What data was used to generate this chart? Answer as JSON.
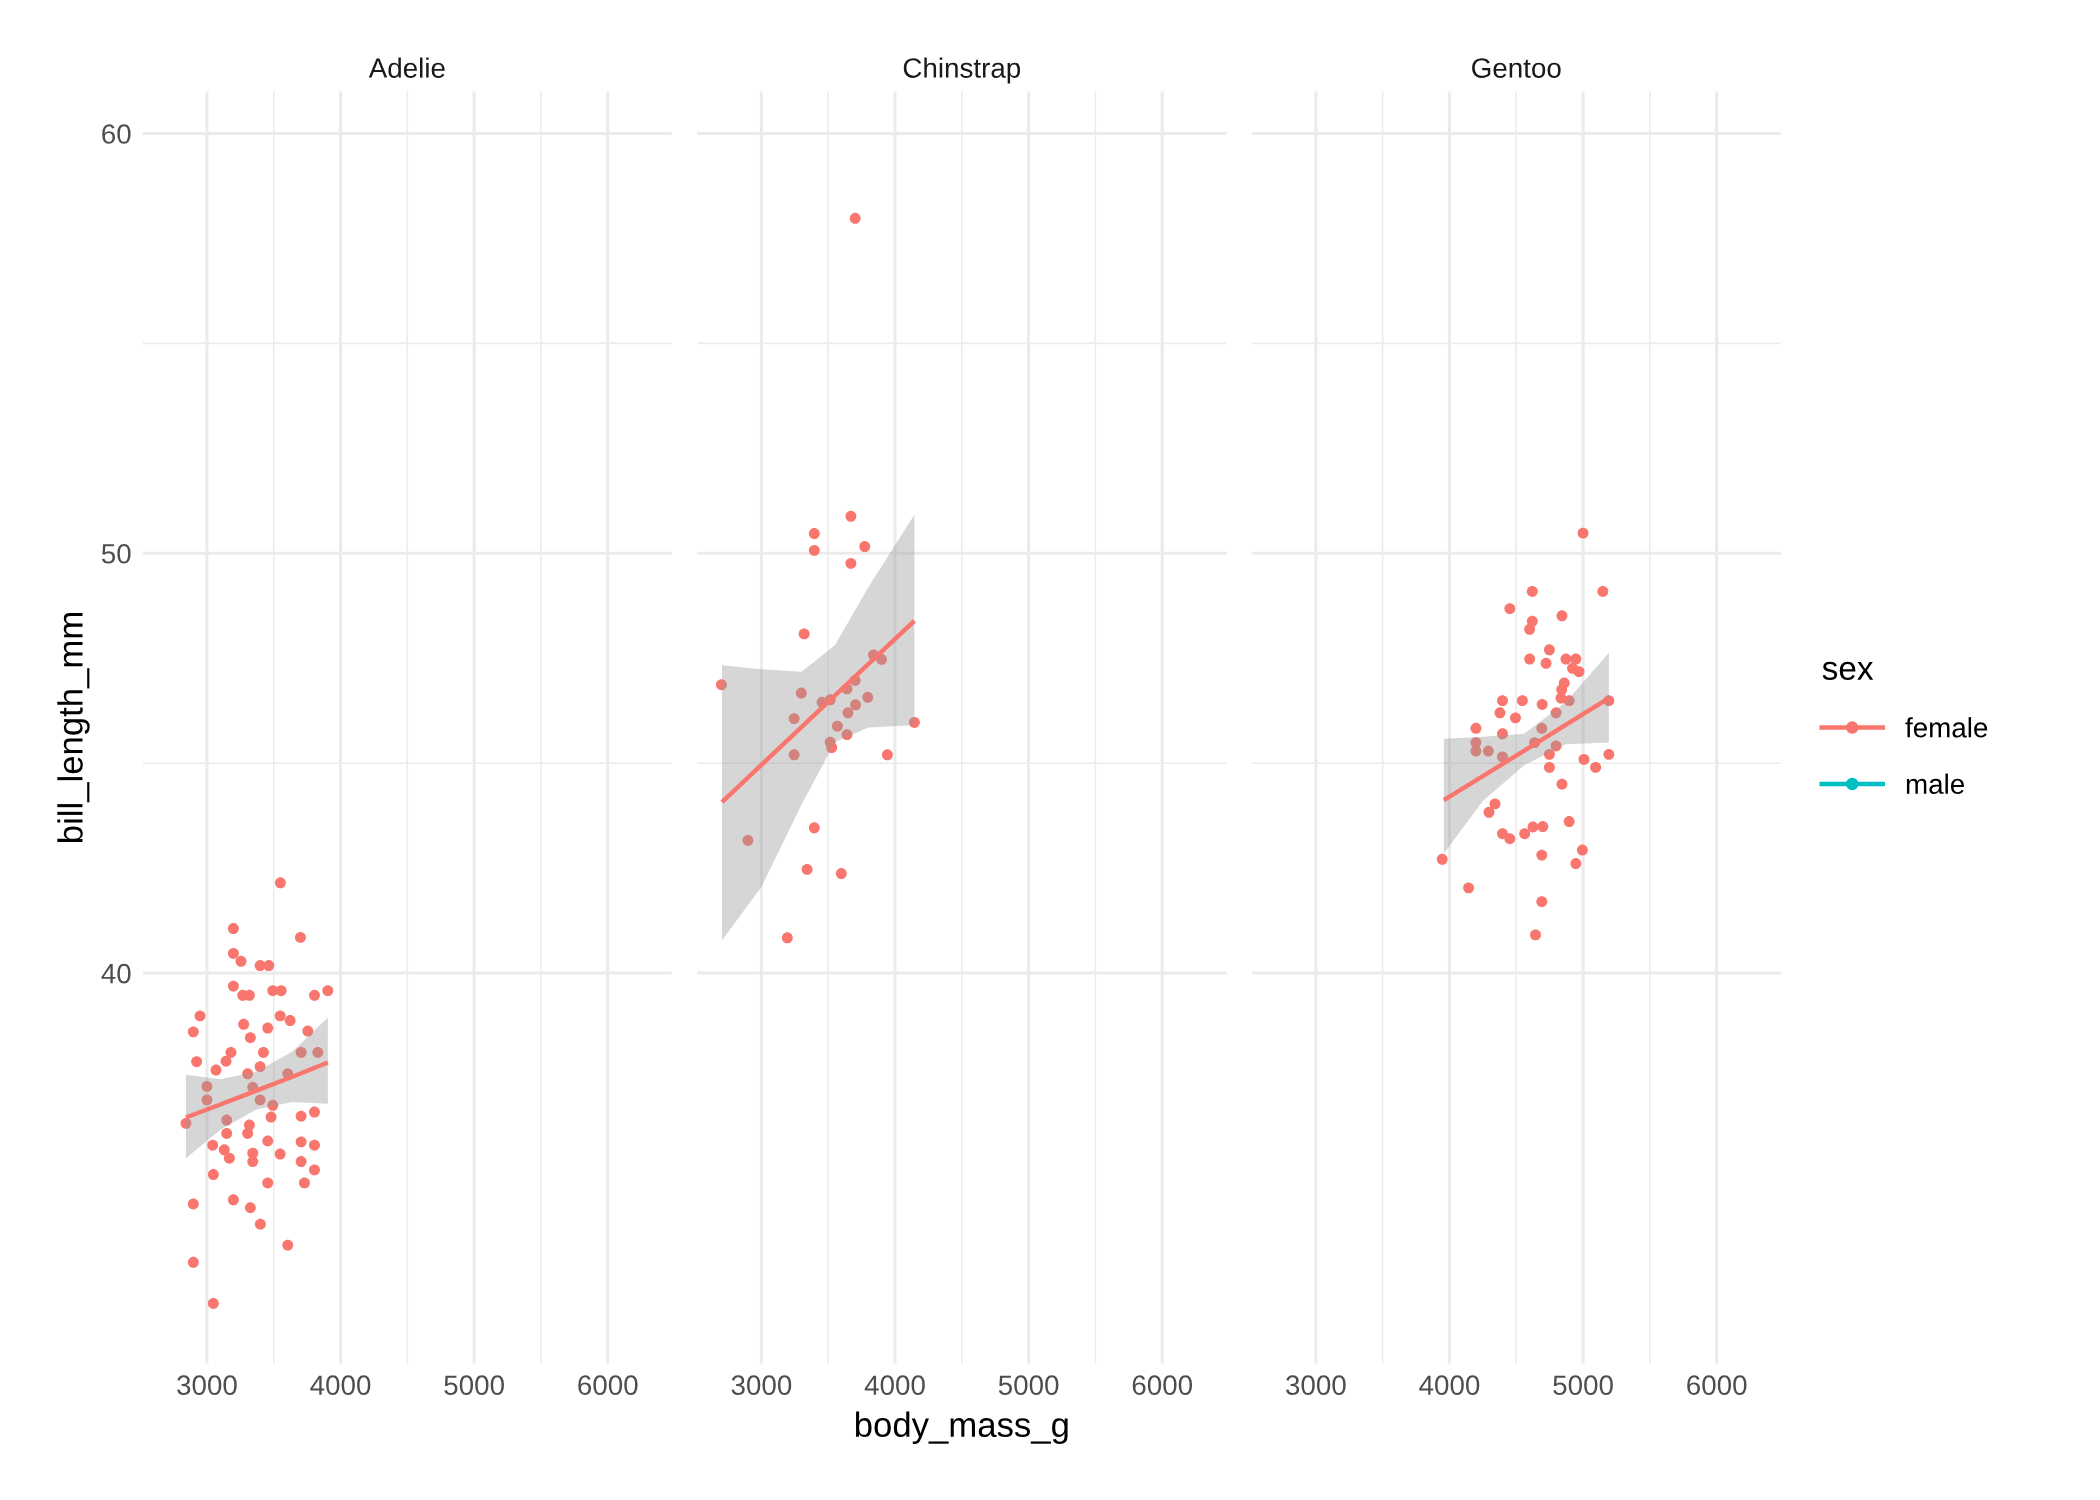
{
  "chart_data": [
    {
      "type": "scatter",
      "title": "Adelie",
      "ylabel": "bill_length_mm",
      "xlim": [
        2520,
        6480
      ],
      "xticks": [
        3000,
        4000,
        5000,
        6000
      ],
      "ylim": [
        30.7,
        61.0
      ],
      "yticks": [
        40,
        50,
        60
      ],
      "grid": true,
      "series": [
        {
          "color": "#f8766d",
          "marker": "circle",
          "x": [
            3550,
            3198,
            3700,
            3198,
            3255,
            3398,
            3463,
            3198,
            3268,
            3318,
            3493,
            3555,
            3805,
            3905,
            2948,
            3548,
            3623,
            2898,
            3275,
            3455,
            3325,
            3755,
            2923,
            3180,
            3143,
            3423,
            3705,
            3830,
            3068,
            3305,
            3398,
            3605,
            3000,
            3000,
            3343,
            3398,
            3493,
            2843,
            3148,
            3480,
            3318,
            3305,
            3705,
            3805,
            3148,
            3043,
            3130,
            3168,
            3343,
            3343,
            3455,
            3548,
            3705,
            3805,
            3705,
            3805,
            3048,
            3455,
            3730,
            2898,
            3198,
            3325,
            3400,
            3605,
            2898,
            3048
          ],
          "values": [
            42.15,
            41.06,
            40.85,
            40.47,
            40.28,
            40.18,
            40.18,
            39.69,
            39.47,
            39.47,
            39.58,
            39.58,
            39.47,
            39.58,
            38.98,
            38.98,
            38.87,
            38.6,
            38.78,
            38.69,
            38.46,
            38.62,
            37.89,
            38.11,
            37.9,
            38.11,
            38.11,
            38.11,
            37.69,
            37.6,
            37.77,
            37.6,
            37.3,
            36.98,
            37.28,
            36.98,
            36.85,
            36.42,
            36.5,
            36.57,
            36.38,
            36.18,
            36.59,
            36.69,
            36.18,
            35.9,
            35.79,
            35.59,
            35.71,
            35.51,
            36.0,
            35.69,
            35.98,
            35.9,
            35.51,
            35.31,
            35.2,
            35.0,
            35.0,
            34.5,
            34.6,
            34.41,
            34.02,
            33.52,
            33.11,
            32.13
          ]
        },
        {
          "type": "line",
          "color": "#f8766d",
          "x": [
            2843,
            3100,
            3370,
            3640,
            3905
          ],
          "values": [
            36.56,
            36.87,
            37.2,
            37.53,
            37.87
          ],
          "lower": [
            35.59,
            36.27,
            36.75,
            36.93,
            36.89
          ],
          "upper": [
            37.58,
            37.47,
            37.65,
            38.13,
            38.94
          ]
        }
      ]
    },
    {
      "type": "scatter",
      "title": "Chinstrap",
      "xlabel": "body_mass_g",
      "xlim": [
        2520,
        6480
      ],
      "xticks": [
        3000,
        4000,
        5000,
        6000
      ],
      "ylim": [
        30.7,
        61.0
      ],
      "yticks": [
        40,
        50,
        60
      ],
      "grid": true,
      "tick_labels": "x",
      "series": [
        {
          "color": "#f8766d",
          "marker": "circle",
          "x": [
            3702,
            3670,
            3396,
            3396,
            3774,
            3670,
            3320,
            2701,
            3299,
            3839,
            3900,
            3702,
            3641,
            3454,
            3515,
            3796,
            3245,
            3705,
            3648,
            3569,
            3515,
            3526,
            3641,
            4145,
            3245,
            3943,
            3396,
            2899,
            3342,
            3598,
            3194
          ],
          "values": [
            57.98,
            50.88,
            50.47,
            50.07,
            50.16,
            49.76,
            48.08,
            46.87,
            46.67,
            47.58,
            47.47,
            46.97,
            46.77,
            46.45,
            46.51,
            46.57,
            46.06,
            46.39,
            46.2,
            45.88,
            45.5,
            45.37,
            45.68,
            45.97,
            45.2,
            45.2,
            43.46,
            43.16,
            42.47,
            42.37,
            40.84
          ]
        },
        {
          "type": "line",
          "color": "#f8766d",
          "x": [
            2705,
            3000,
            3300,
            3550,
            3800,
            4145
          ],
          "values": [
            44.07,
            44.96,
            45.86,
            46.61,
            47.36,
            48.39
          ],
          "lower": [
            40.78,
            42.05,
            44.01,
            45.5,
            45.85,
            45.91
          ],
          "upper": [
            47.33,
            47.24,
            47.18,
            47.81,
            49.19,
            50.92
          ]
        }
      ]
    },
    {
      "type": "scatter",
      "title": "Gentoo",
      "xlim": [
        2520,
        6480
      ],
      "xticks": [
        3000,
        4000,
        5000,
        6000
      ],
      "ylim": [
        30.7,
        61.0
      ],
      "yticks": [
        40,
        50,
        60
      ],
      "grid": true,
      "tick_labels": "x",
      "legend": "right",
      "legend_title": "sex",
      "series": [
        {
          "name": "female",
          "color": "#f8766d",
          "marker": "circle",
          "x": [
            5000,
            5148,
            4620,
            4452,
            4842,
            4620,
            4600,
            4748,
            4600,
            4723,
            4872,
            4946,
            4921,
            4970,
            4859,
            4840,
            4835,
            4896,
            4397,
            4546,
            4694,
            5193,
            4378,
            4494,
            4798,
            4198,
            4397,
            4691,
            4198,
            4198,
            4291,
            4637,
            4798,
            4748,
            4397,
            4748,
            5007,
            5094,
            5193,
            4842,
            4341,
            4296,
            4397,
            4452,
            4563,
            4625,
            4699,
            4896,
            4995,
            4946,
            4691,
            3946,
            4143,
            4691,
            4644
          ],
          "values": [
            50.48,
            49.09,
            49.09,
            48.68,
            48.51,
            48.38,
            48.19,
            47.7,
            47.48,
            47.38,
            47.48,
            47.48,
            47.26,
            47.18,
            46.91,
            46.75,
            46.55,
            46.49,
            46.49,
            46.49,
            46.4,
            46.49,
            46.2,
            46.08,
            46.2,
            45.83,
            45.7,
            45.83,
            45.49,
            45.29,
            45.29,
            45.49,
            45.41,
            45.21,
            45.15,
            44.9,
            45.09,
            44.9,
            45.21,
            44.5,
            44.03,
            43.83,
            43.32,
            43.2,
            43.32,
            43.48,
            43.49,
            43.61,
            42.93,
            42.61,
            42.81,
            42.71,
            42.03,
            41.7,
            40.91
          ]
        },
        {
          "name": "male",
          "color": "#00bfc4",
          "marker": "circle"
        },
        {
          "type": "line",
          "color": "#f8766d",
          "x": [
            3958,
            4250,
            4560,
            4870,
            5193
          ],
          "values": [
            44.12,
            44.69,
            45.3,
            45.91,
            46.55
          ],
          "lower": [
            42.85,
            44.1,
            44.95,
            45.45,
            45.49
          ],
          "upper": [
            45.58,
            45.63,
            45.7,
            46.45,
            47.63
          ]
        }
      ]
    }
  ]
}
